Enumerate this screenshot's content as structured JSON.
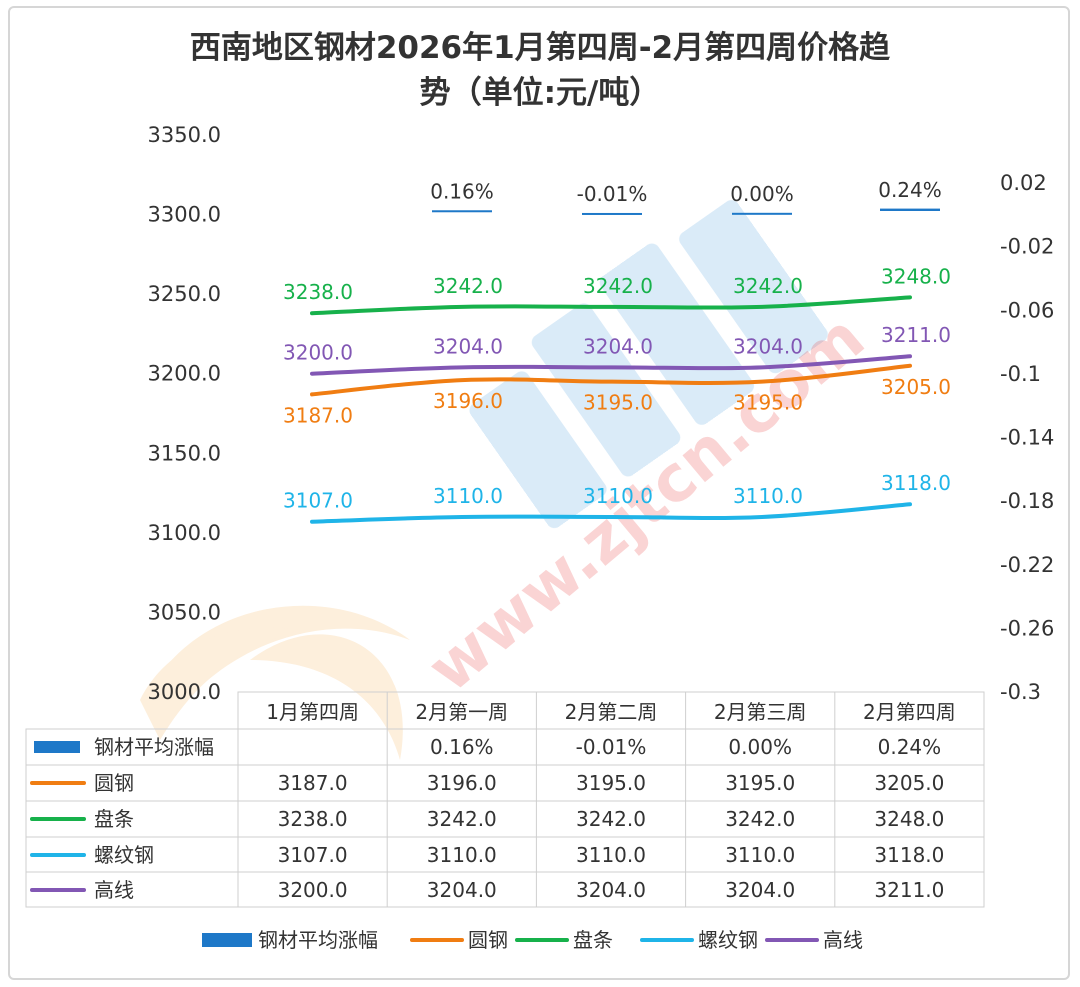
{
  "chart_data": {
    "type": "line",
    "title_line1": "西南地区钢材2026年1月第四周-2月第四周价格趋",
    "title_line2": "势（单位:元/吨）",
    "categories": [
      "1月第四周",
      "2月第一周",
      "2月第二周",
      "2月第三周",
      "2月第四周"
    ],
    "ylim": [
      3000,
      3350
    ],
    "y_ticks": [
      "3350.0",
      "3300.0",
      "3250.0",
      "3200.0",
      "3150.0",
      "3100.0",
      "3050.0",
      "3000.0"
    ],
    "y2lim": [
      -0.3,
      0.02
    ],
    "y2_ticks": [
      "0.02",
      "-0.02",
      "-0.06",
      "-0.1",
      "-0.14",
      "-0.18",
      "-0.22",
      "-0.26",
      "-0.3"
    ],
    "bar_series": {
      "name": "钢材平均涨幅",
      "color": "#1e78c8",
      "values": [
        null,
        0.0016,
        -0.0001,
        0.0,
        0.0024
      ],
      "labels": [
        "",
        "0.16%",
        "-0.01%",
        "0.00%",
        "0.24%"
      ]
    },
    "series": [
      {
        "name": "圆钢",
        "color": "#f07d12",
        "values": [
          3187.0,
          3196.0,
          3195.0,
          3195.0,
          3205.0
        ],
        "labels": [
          "3187.0",
          "3196.0",
          "3195.0",
          "3195.0",
          "3205.0"
        ],
        "label_pos": "below"
      },
      {
        "name": "盘条",
        "color": "#17b14b",
        "values": [
          3238.0,
          3242.0,
          3242.0,
          3242.0,
          3248.0
        ],
        "labels": [
          "3238.0",
          "3242.0",
          "3242.0",
          "3242.0",
          "3248.0"
        ],
        "label_pos": "above"
      },
      {
        "name": "螺纹钢",
        "color": "#1fb4e8",
        "values": [
          3107.0,
          3110.0,
          3110.0,
          3110.0,
          3118.0
        ],
        "labels": [
          "3107.0",
          "3110.0",
          "3110.0",
          "3110.0",
          "3118.0"
        ],
        "label_pos": "above"
      },
      {
        "name": "高线",
        "color": "#8257b4",
        "values": [
          3200.0,
          3204.0,
          3204.0,
          3204.0,
          3211.0
        ],
        "labels": [
          "3200.0",
          "3204.0",
          "3204.0",
          "3204.0",
          "3211.0"
        ],
        "label_pos": "above"
      }
    ],
    "table": {
      "headers": [
        "1月第四周",
        "2月第一周",
        "2月第二周",
        "2月第三周",
        "2月第四周"
      ],
      "rows": [
        {
          "name": "钢材平均涨幅",
          "color": "#1e78c8",
          "kind": "bar",
          "cells": [
            "",
            "0.16%",
            "-0.01%",
            "0.00%",
            "0.24%"
          ]
        },
        {
          "name": "圆钢",
          "color": "#f07d12",
          "kind": "line",
          "cells": [
            "3187.0",
            "3196.0",
            "3195.0",
            "3195.0",
            "3205.0"
          ]
        },
        {
          "name": "盘条",
          "color": "#17b14b",
          "kind": "line",
          "cells": [
            "3238.0",
            "3242.0",
            "3242.0",
            "3242.0",
            "3248.0"
          ]
        },
        {
          "name": "螺纹钢",
          "color": "#1fb4e8",
          "kind": "line",
          "cells": [
            "3107.0",
            "3110.0",
            "3110.0",
            "3110.0",
            "3118.0"
          ]
        },
        {
          "name": "高线",
          "color": "#8257b4",
          "kind": "line",
          "cells": [
            "3200.0",
            "3204.0",
            "3204.0",
            "3204.0",
            "3211.0"
          ]
        }
      ]
    },
    "legend": [
      {
        "name": "钢材平均涨幅",
        "color": "#1e78c8",
        "kind": "bar"
      },
      {
        "name": "圆钢",
        "color": "#f07d12",
        "kind": "line"
      },
      {
        "name": "盘条",
        "color": "#17b14b",
        "kind": "line"
      },
      {
        "name": "螺纹钢",
        "color": "#1fb4e8",
        "kind": "line"
      },
      {
        "name": "高线",
        "color": "#8257b4",
        "kind": "line"
      }
    ],
    "watermark": "www.zjtcn.com"
  }
}
